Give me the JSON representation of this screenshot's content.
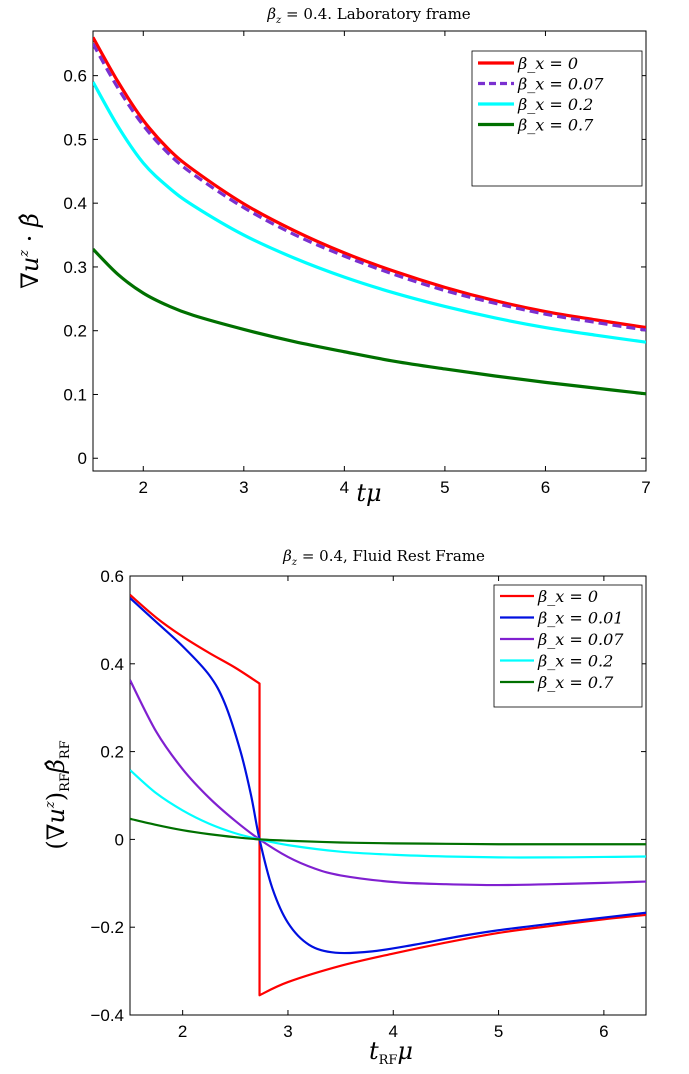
{
  "charts": [
    {
      "type": "line",
      "title": "β_z = 0.4. Laboratory frame",
      "xlabel": "tμ",
      "ylabel": "∇u^z · β̂",
      "xlim": [
        1.5,
        7
      ],
      "ylim": [
        -0.02,
        0.67
      ],
      "xticks": [
        "2",
        "3",
        "4",
        "5",
        "6",
        "7"
      ],
      "yticks": [
        "0",
        "0.1",
        "0.2",
        "0.3",
        "0.4",
        "0.5",
        "0.6"
      ],
      "legend_position": "top-right",
      "series": [
        {
          "name": "β_x = 0",
          "color": "#ff0000",
          "dash": "solid",
          "width": 3.2,
          "x": [
            1.5,
            1.75,
            2.0,
            2.25,
            2.5,
            3.0,
            3.5,
            4.0,
            4.5,
            5.0,
            5.5,
            6.0,
            6.5,
            7.0
          ],
          "y": [
            0.66,
            0.59,
            0.53,
            0.485,
            0.452,
            0.399,
            0.357,
            0.322,
            0.293,
            0.268,
            0.247,
            0.23,
            0.217,
            0.205
          ]
        },
        {
          "name": "β_x = 0.07",
          "color": "#7a30d0",
          "dash": "dashed",
          "width": 3.2,
          "x": [
            1.5,
            1.75,
            2.0,
            2.25,
            2.5,
            3.0,
            3.5,
            4.0,
            4.5,
            5.0,
            5.5,
            6.0,
            6.5,
            7.0
          ],
          "y": [
            0.65,
            0.58,
            0.522,
            0.478,
            0.445,
            0.393,
            0.351,
            0.317,
            0.288,
            0.263,
            0.243,
            0.226,
            0.213,
            0.201
          ]
        },
        {
          "name": "β_x = 0.2",
          "color": "#00ffff",
          "dash": "solid",
          "width": 3.2,
          "x": [
            1.5,
            1.75,
            2.0,
            2.25,
            2.5,
            3.0,
            3.5,
            4.0,
            4.5,
            5.0,
            5.5,
            6.0,
            6.5,
            7.0
          ],
          "y": [
            0.59,
            0.52,
            0.463,
            0.425,
            0.396,
            0.35,
            0.314,
            0.284,
            0.259,
            0.238,
            0.22,
            0.205,
            0.193,
            0.182
          ]
        },
        {
          "name": "β_x = 0.7",
          "color": "#007000",
          "dash": "solid",
          "width": 3.2,
          "x": [
            1.5,
            1.75,
            2.0,
            2.25,
            2.5,
            3.0,
            3.5,
            4.0,
            4.5,
            5.0,
            5.5,
            6.0,
            6.5,
            7.0
          ],
          "y": [
            0.328,
            0.288,
            0.259,
            0.239,
            0.224,
            0.202,
            0.183,
            0.167,
            0.152,
            0.14,
            0.129,
            0.119,
            0.11,
            0.101
          ]
        }
      ]
    },
    {
      "type": "line",
      "title": "β_z = 0.4, Fluid Rest Frame",
      "xlabel": "t_RF μ",
      "ylabel": "(∇u^z)_RF β̂_RF",
      "xlim": [
        1.5,
        6.4
      ],
      "ylim": [
        -0.4,
        0.6
      ],
      "xticks": [
        "2",
        "3",
        "4",
        "5",
        "6"
      ],
      "yticks": [
        "−0.4",
        "−0.2",
        "0",
        "0.2",
        "0.4",
        "0.6"
      ],
      "legend_position": "top-right",
      "series": [
        {
          "name": "β_x = 0",
          "color": "#ff0000",
          "dash": "solid",
          "width": 2.2,
          "x": [
            1.5,
            1.75,
            2.0,
            2.25,
            2.5,
            2.73,
            2.73,
            3.0,
            3.5,
            4.0,
            4.5,
            5.0,
            5.5,
            6.0,
            6.4
          ],
          "y": [
            0.557,
            0.505,
            0.462,
            0.425,
            0.391,
            0.355,
            -0.355,
            -0.325,
            -0.288,
            -0.26,
            -0.235,
            -0.213,
            -0.197,
            -0.182,
            -0.172
          ]
        },
        {
          "name": "β_x = 0.01",
          "color": "#0010e0",
          "dash": "solid",
          "width": 2.2,
          "x": [
            1.5,
            1.75,
            2.0,
            2.25,
            2.4,
            2.55,
            2.65,
            2.73,
            2.85,
            3.0,
            3.2,
            3.45,
            3.8,
            4.2,
            4.6,
            5.0,
            5.5,
            6.0,
            6.4
          ],
          "y": [
            0.55,
            0.495,
            0.44,
            0.375,
            0.31,
            0.2,
            0.1,
            0.0,
            -0.11,
            -0.19,
            -0.24,
            -0.258,
            -0.255,
            -0.24,
            -0.222,
            -0.207,
            -0.192,
            -0.178,
            -0.167
          ]
        },
        {
          "name": "β_x = 0.07",
          "color": "#8020d0",
          "dash": "solid",
          "width": 2.2,
          "x": [
            1.5,
            1.75,
            2.0,
            2.25,
            2.5,
            2.73,
            3.0,
            3.25,
            3.5,
            4.0,
            4.5,
            5.0,
            5.5,
            6.0,
            6.4
          ],
          "y": [
            0.363,
            0.245,
            0.16,
            0.095,
            0.042,
            0.0,
            -0.04,
            -0.066,
            -0.082,
            -0.097,
            -0.102,
            -0.104,
            -0.102,
            -0.099,
            -0.096
          ]
        },
        {
          "name": "β_x = 0.2",
          "color": "#00ffff",
          "dash": "solid",
          "width": 2.2,
          "x": [
            1.5,
            1.75,
            2.0,
            2.25,
            2.5,
            2.73,
            3.0,
            3.5,
            4.0,
            4.5,
            5.0,
            5.5,
            6.0,
            6.4
          ],
          "y": [
            0.158,
            0.105,
            0.066,
            0.036,
            0.014,
            0.0,
            -0.013,
            -0.028,
            -0.035,
            -0.039,
            -0.041,
            -0.041,
            -0.04,
            -0.039
          ]
        },
        {
          "name": "β_x = 0.7",
          "color": "#007000",
          "dash": "solid",
          "width": 2.2,
          "x": [
            1.5,
            1.75,
            2.0,
            2.25,
            2.5,
            2.73,
            3.0,
            3.5,
            4.0,
            4.5,
            5.0,
            5.5,
            6.0,
            6.4
          ],
          "y": [
            0.047,
            0.033,
            0.021,
            0.012,
            0.005,
            0.0,
            -0.003,
            -0.007,
            -0.009,
            -0.01,
            -0.011,
            -0.011,
            -0.011,
            -0.011
          ]
        }
      ]
    }
  ]
}
